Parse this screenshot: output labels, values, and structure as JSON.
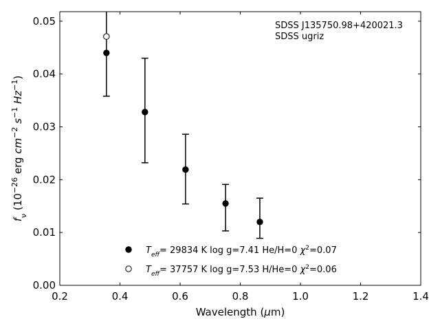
{
  "chart_data": {
    "type": "scatter",
    "title": "",
    "annotation": [
      "SDSS J135750.98+420021.3",
      "SDSS ugriz"
    ],
    "xlabel": [
      {
        "t": "Wavelength ("
      },
      {
        "t": "μ",
        "s": "it"
      },
      {
        "t": "m)"
      }
    ],
    "ylabel": [
      {
        "t": "f",
        "s": "it"
      },
      {
        "t": "ν",
        "s": "sub"
      },
      {
        "t": " (10"
      },
      {
        "t": "−26",
        "s": "sup"
      },
      {
        "t": " erg "
      },
      {
        "t": "cm",
        "s": "it"
      },
      {
        "t": "−2",
        "s": "sup"
      },
      {
        "t": " "
      },
      {
        "t": "s",
        "s": "it"
      },
      {
        "t": "−1",
        "s": "sup"
      },
      {
        "t": " "
      },
      {
        "t": "Hz",
        "s": "it"
      },
      {
        "t": "−1",
        "s": "sup"
      },
      {
        "t": ")"
      }
    ],
    "xlim": [
      0.2,
      1.4
    ],
    "ylim": [
      0.0,
      0.0518
    ],
    "xticks": [
      0.2,
      0.4,
      0.6,
      0.8,
      1.0,
      1.2,
      1.4
    ],
    "xtick_labels": [
      "0.2",
      "0.4",
      "0.6",
      "0.8",
      "1.0",
      "1.2",
      "1.4"
    ],
    "yticks": [
      0.0,
      0.01,
      0.02,
      0.03,
      0.04,
      0.05
    ],
    "ytick_labels": [
      "0.00",
      "0.01",
      "0.02",
      "0.03",
      "0.04",
      "0.05"
    ],
    "grid": false,
    "observed": {
      "x": [
        0.355,
        0.483,
        0.618,
        0.751,
        0.865
      ],
      "y": [
        0.044,
        0.0328,
        0.0219,
        0.0155,
        0.012
      ],
      "yerr_low": [
        0.0358,
        0.0232,
        0.0154,
        0.0103,
        0.0089
      ],
      "yerr_high": [
        0.0522,
        0.043,
        0.0286,
        0.0191,
        0.0165
      ]
    },
    "series": [
      {
        "name": "He/H=0 model",
        "marker": "filled",
        "x": [
          0.355,
          0.483,
          0.618,
          0.751,
          0.865
        ],
        "y": [
          0.044,
          0.0328,
          0.0219,
          0.0155,
          0.012
        ],
        "legend": [
          {
            "t": "T",
            "s": "it"
          },
          {
            "t": "eff",
            "s": "subit"
          },
          {
            "t": "= 29834 K  log g=7.41  He/H=0  "
          },
          {
            "t": "χ",
            "s": "it"
          },
          {
            "t": "2",
            "s": "sup"
          },
          {
            "t": "=0.07"
          }
        ]
      },
      {
        "name": "H/He=0 model",
        "marker": "open",
        "x": [
          0.355
        ],
        "y": [
          0.0471
        ],
        "legend": [
          {
            "t": "T",
            "s": "it"
          },
          {
            "t": "eff",
            "s": "subit"
          },
          {
            "t": "= 37757 K  log g=7.53  H/He=0  "
          },
          {
            "t": "χ",
            "s": "it"
          },
          {
            "t": "2",
            "s": "sup"
          },
          {
            "t": "=0.06"
          }
        ]
      }
    ],
    "legend_position": "bottom-center"
  }
}
